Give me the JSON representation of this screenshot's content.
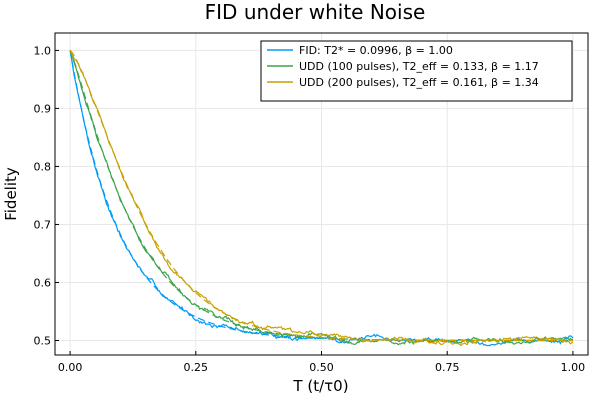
{
  "chart_data": {
    "type": "line",
    "title": "FID under white Noise",
    "xlabel": "T (t/τ0)",
    "ylabel": "Fidelity",
    "xlim": [
      -0.03,
      1.03
    ],
    "ylim": [
      0.475,
      1.03
    ],
    "xticks": [
      0.0,
      0.25,
      0.5,
      0.75,
      1.0
    ],
    "xtick_labels": [
      "0.00",
      "0.25",
      "0.50",
      "0.75",
      "1.00"
    ],
    "yticks": [
      0.5,
      0.6,
      0.7,
      0.8,
      0.9,
      1.0
    ],
    "ytick_labels": [
      "0.5",
      "0.6",
      "0.7",
      "0.8",
      "0.9",
      "1.0"
    ],
    "grid": true,
    "legend_position": "top-right",
    "asymptote": 0.5,
    "series": [
      {
        "name": "FID: T2* = 0.0996, β = 1.00",
        "color": "#009af9",
        "T2": 0.0996,
        "beta": 1.0,
        "noise_seed": 7
      },
      {
        "name": "UDD (100 pulses), T2_eff = 0.133, β = 1.17",
        "color": "#3da44d",
        "T2": 0.133,
        "beta": 1.17,
        "noise_seed": 19
      },
      {
        "name": "UDD (200 pulses), T2_eff = 0.161, β = 1.34",
        "color": "#c8a100",
        "T2": 0.161,
        "beta": 1.34,
        "noise_seed": 31
      }
    ]
  }
}
